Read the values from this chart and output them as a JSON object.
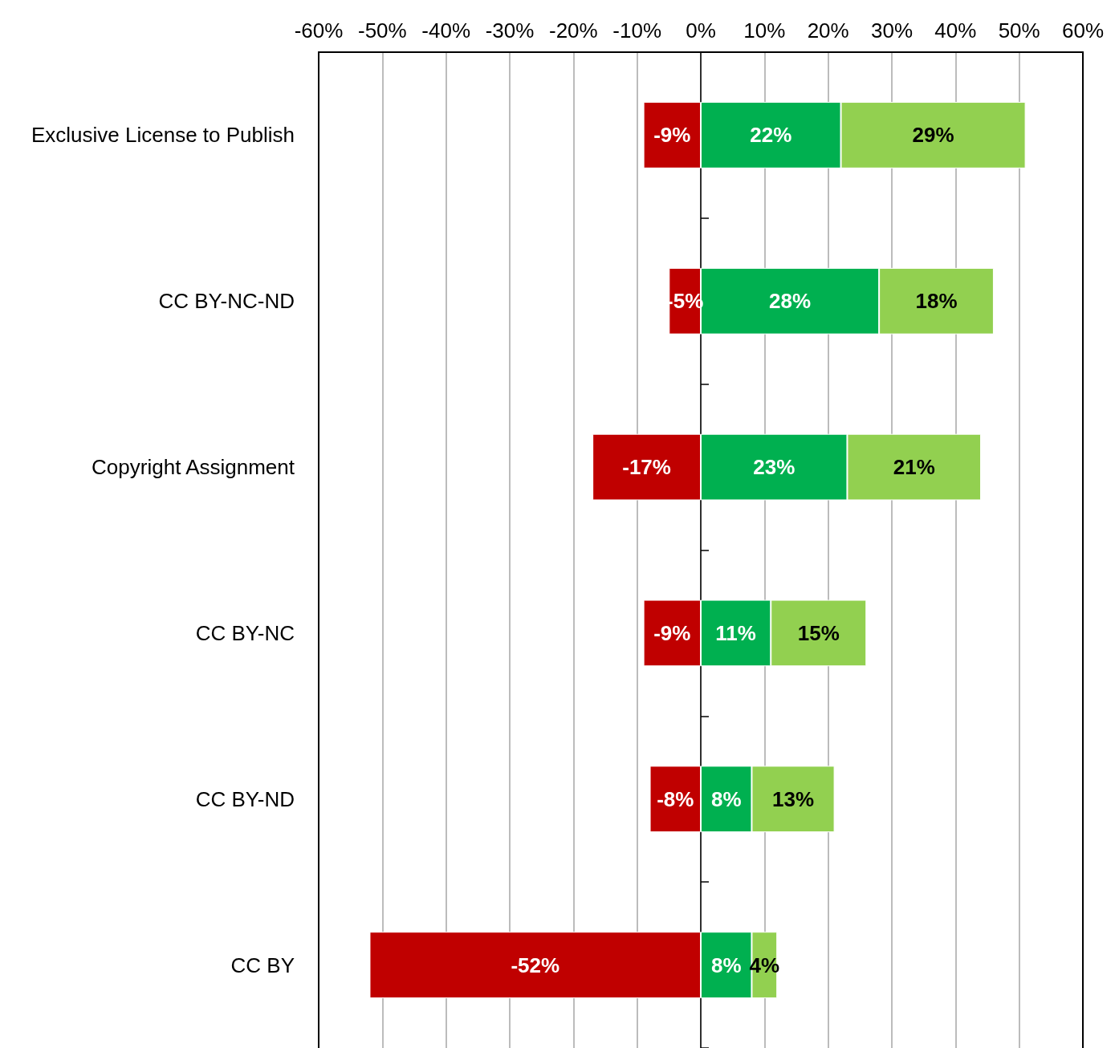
{
  "chart_data": {
    "type": "bar",
    "orientation": "horizontal",
    "stacked": true,
    "categories": [
      "Exclusive License to Publish",
      "CC BY-NC-ND",
      "Copyright Assignment",
      "CC BY-NC",
      "CC BY-ND",
      "CC BY"
    ],
    "series": [
      {
        "color": "#c00000",
        "values": [
          -9,
          -5,
          -17,
          -9,
          -8,
          -52
        ],
        "value_labels": [
          "-9%",
          "-5%",
          "-17%",
          "-9%",
          "-8%",
          "-52%"
        ]
      },
      {
        "color": "#00b050",
        "values": [
          22,
          28,
          23,
          11,
          8,
          8
        ],
        "value_labels": [
          "22%",
          "28%",
          "23%",
          "11%",
          "8%",
          "8%"
        ]
      },
      {
        "color": "#92d050",
        "values": [
          29,
          18,
          21,
          15,
          13,
          4
        ],
        "value_labels": [
          "29%",
          "18%",
          "21%",
          "15%",
          "13%",
          "4%"
        ]
      }
    ],
    "xlim": [
      -60,
      60
    ],
    "xticks": [
      {
        "value": -60,
        "label": "-60%"
      },
      {
        "value": -50,
        "label": "-50%"
      },
      {
        "value": -40,
        "label": "-40%"
      },
      {
        "value": -30,
        "label": "-30%"
      },
      {
        "value": -20,
        "label": "-20%"
      },
      {
        "value": -10,
        "label": "-10%"
      },
      {
        "value": 0,
        "label": "0%"
      },
      {
        "value": 10,
        "label": "10%"
      },
      {
        "value": 20,
        "label": "20%"
      },
      {
        "value": 30,
        "label": "30%"
      },
      {
        "value": 40,
        "label": "40%"
      },
      {
        "value": 50,
        "label": "50%"
      },
      {
        "value": 60,
        "label": "60%"
      }
    ],
    "grid": "x"
  }
}
